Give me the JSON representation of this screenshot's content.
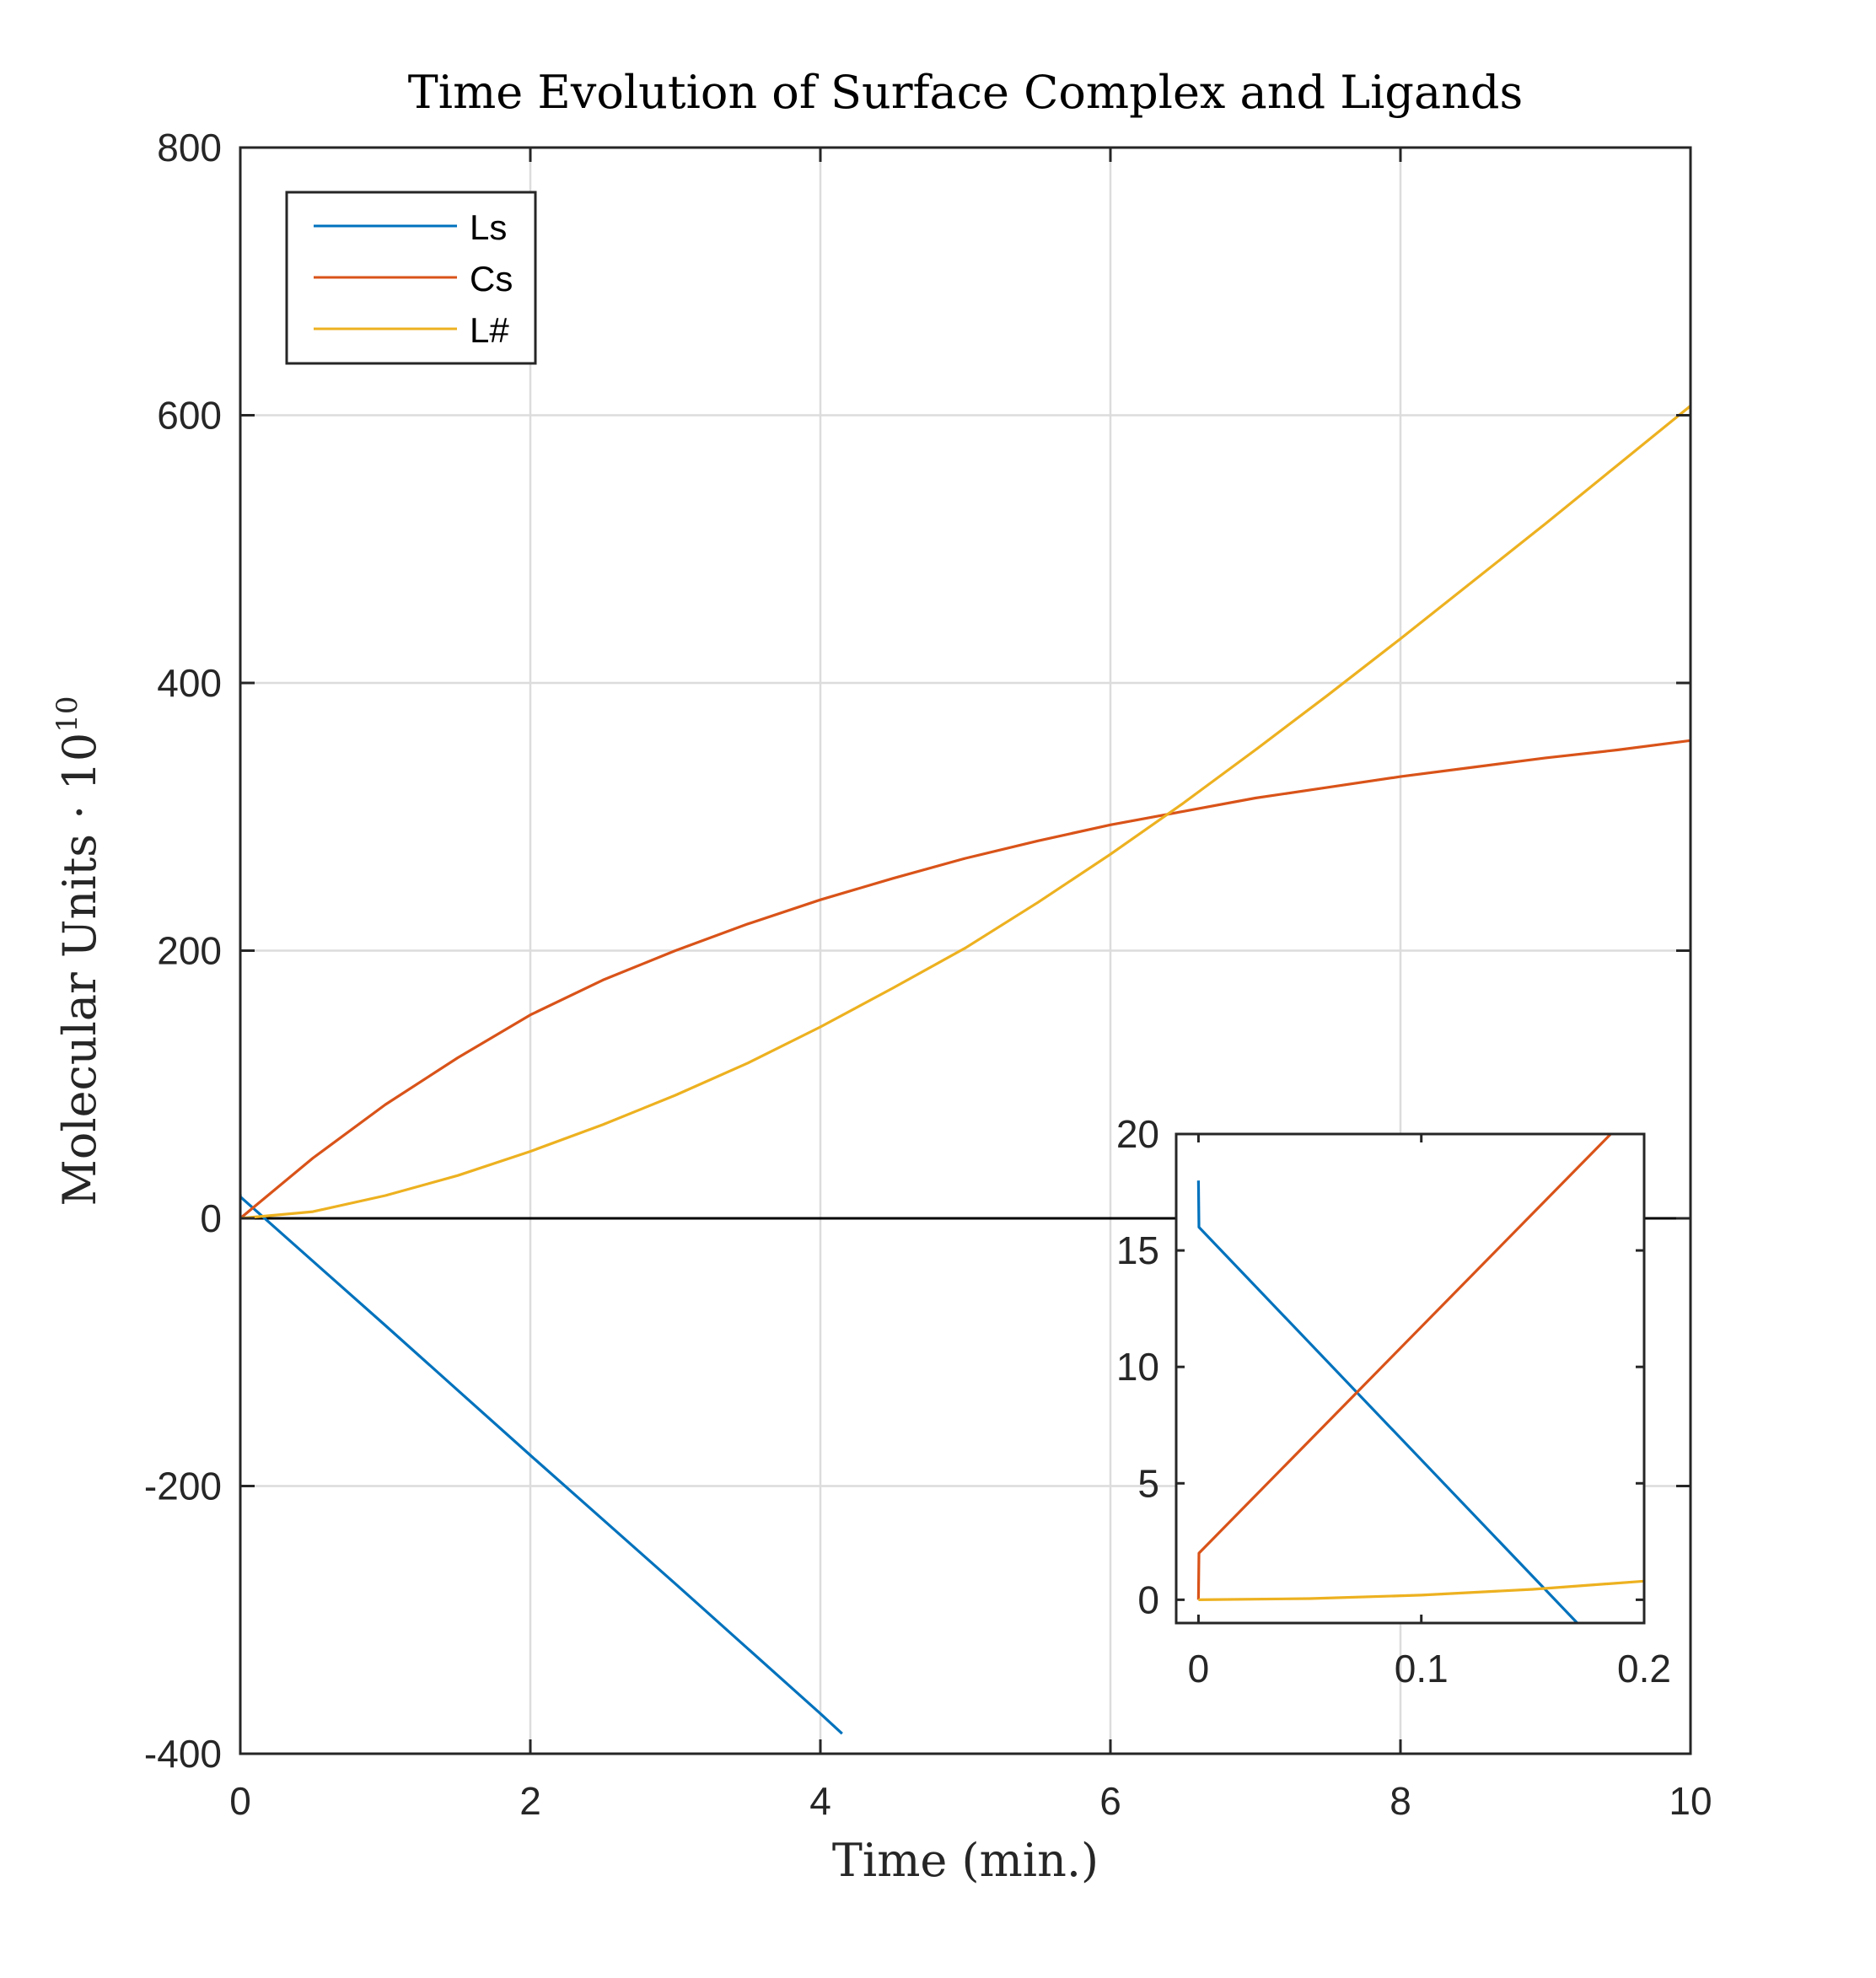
{
  "chart_data": [
    {
      "type": "line",
      "title": "Time Evolution of Surface Complex and Ligands",
      "xlabel": "Time (min.)",
      "ylabel": "Molecular Units · 10",
      "ylabel_superscript": "10",
      "xlim": [
        0,
        10
      ],
      "ylim": [
        -400,
        800
      ],
      "xticks": [
        "0",
        "2",
        "4",
        "6",
        "8",
        "10"
      ],
      "yticks": [
        "-400",
        "-200",
        "0",
        "200",
        "400",
        "600",
        "800"
      ],
      "grid": true,
      "zero_line": true,
      "legend_position": "top-left",
      "series": [
        {
          "name": "Ls",
          "color": "#0072BD",
          "x": [
            0,
            0.001,
            1,
            2,
            3,
            4,
            4.15
          ],
          "y": [
            18,
            16,
            -80,
            -177,
            -273,
            -370,
            -385
          ]
        },
        {
          "name": "Cs",
          "color": "#D95319",
          "x": [
            0,
            0.5,
            1,
            1.5,
            2,
            2.5,
            3,
            3.5,
            4,
            4.5,
            5,
            5.5,
            6,
            6.5,
            7,
            7.5,
            8,
            8.5,
            9,
            9.5,
            10
          ],
          "y": [
            0,
            45,
            85,
            120,
            152,
            178,
            200,
            220,
            238,
            254,
            269,
            282,
            294,
            304,
            314,
            322,
            330,
            337,
            344,
            350,
            357
          ]
        },
        {
          "name": "L#",
          "color": "#EDB120",
          "x": [
            0,
            0.5,
            1,
            1.5,
            2,
            2.5,
            3,
            3.5,
            4,
            4.5,
            5,
            5.5,
            6,
            6.5,
            7,
            7.5,
            8,
            8.5,
            9,
            9.5,
            10
          ],
          "y": [
            0,
            5,
            17,
            32,
            50,
            70,
            92,
            116,
            143,
            172,
            202,
            236,
            272,
            310,
            350,
            391,
            433,
            476,
            519,
            563,
            607
          ]
        }
      ]
    },
    {
      "type": "line",
      "title": "",
      "xlabel": "",
      "ylabel": "",
      "xlim": [
        -0.01,
        0.2
      ],
      "ylim": [
        -1,
        20
      ],
      "xticks": [
        "0",
        "0.1",
        "0.2"
      ],
      "yticks": [
        "0",
        "5",
        "10",
        "15",
        "20"
      ],
      "grid": false,
      "series": [
        {
          "color": "#0072BD",
          "x": [
            0,
            0.0002,
            0.17
          ],
          "y": [
            18,
            16,
            -1
          ]
        },
        {
          "color": "#D95319",
          "x": [
            0,
            0.0002,
            0.185
          ],
          "y": [
            0,
            2,
            20
          ]
        },
        {
          "color": "#EDB120",
          "x": [
            0,
            0.05,
            0.1,
            0.15,
            0.2
          ],
          "y": [
            0,
            0.05,
            0.2,
            0.45,
            0.8
          ]
        }
      ]
    }
  ]
}
